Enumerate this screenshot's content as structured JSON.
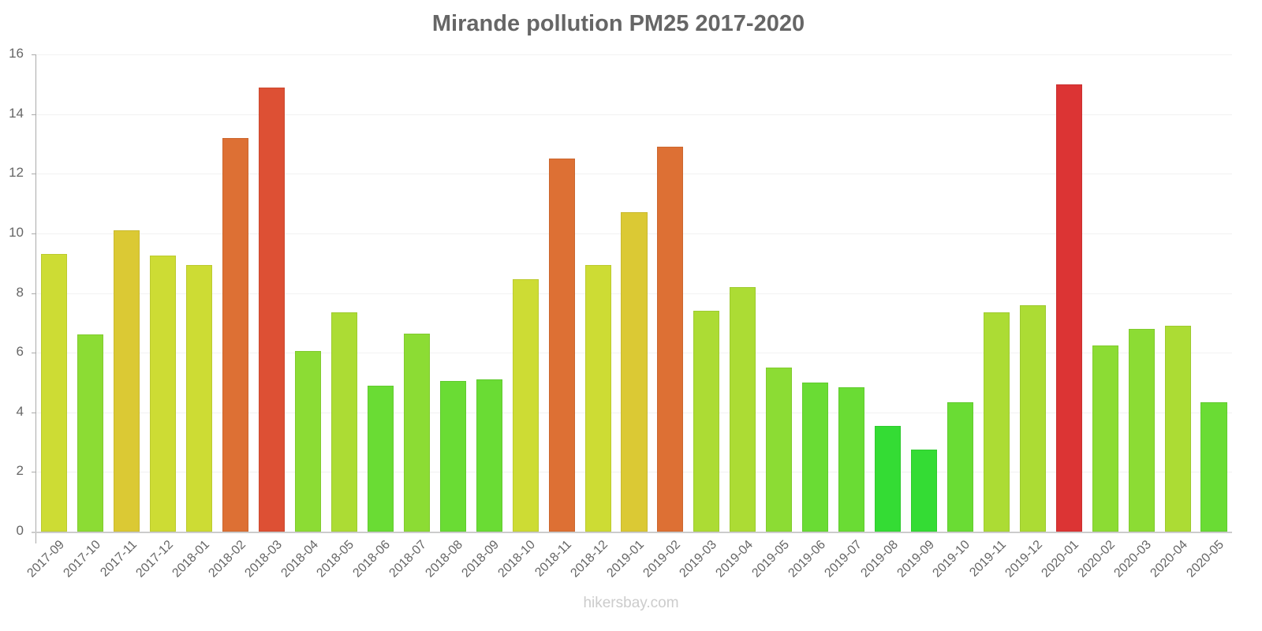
{
  "chart_data": {
    "type": "bar",
    "title": "Mirande pollution PM25 2017-2020",
    "xlabel": "",
    "ylabel": "",
    "ylim": [
      0,
      16
    ],
    "yticks": [
      0,
      2,
      4,
      6,
      8,
      10,
      12,
      14,
      16
    ],
    "grid": true,
    "legend": null,
    "categories": [
      "2017-09",
      "2017-10",
      "2017-11",
      "2017-12",
      "2018-01",
      "2018-02",
      "2018-03",
      "2018-04",
      "2018-05",
      "2018-06",
      "2018-07",
      "2018-08",
      "2018-09",
      "2018-10",
      "2018-11",
      "2018-12",
      "2019-01",
      "2019-02",
      "2019-03",
      "2019-04",
      "2019-05",
      "2019-06",
      "2019-07",
      "2019-08",
      "2019-09",
      "2019-10",
      "2019-11",
      "2019-12",
      "2020-01",
      "2020-02",
      "2020-03",
      "2020-04",
      "2020-05"
    ],
    "values": [
      9.3,
      6.6,
      10.1,
      9.25,
      8.95,
      13.2,
      14.9,
      6.05,
      7.35,
      4.9,
      6.65,
      5.05,
      5.1,
      8.45,
      12.5,
      8.95,
      10.7,
      12.9,
      7.4,
      8.2,
      5.5,
      5.0,
      4.85,
      3.55,
      2.75,
      4.35,
      7.35,
      7.6,
      15.0,
      6.25,
      6.8,
      6.9,
      4.35
    ],
    "colors": [
      "#cddc34",
      "#8cdc34",
      "#dbc934",
      "#cddc34",
      "#cddc34",
      "#dd7034",
      "#dd5034",
      "#8cdc34",
      "#acdc34",
      "#6adc34",
      "#8cdc34",
      "#6adc34",
      "#6adc34",
      "#cddc34",
      "#dd7034",
      "#cddc34",
      "#dbc934",
      "#dd7034",
      "#acdc34",
      "#acdc34",
      "#8cdc34",
      "#6adc34",
      "#6adc34",
      "#34dc34",
      "#34dc34",
      "#6adc34",
      "#acdc34",
      "#acdc34",
      "#dc3434",
      "#8cdc34",
      "#8cdc34",
      "#acdc34",
      "#6adc34"
    ]
  },
  "footer": {
    "watermark": "hikersbay.com"
  }
}
